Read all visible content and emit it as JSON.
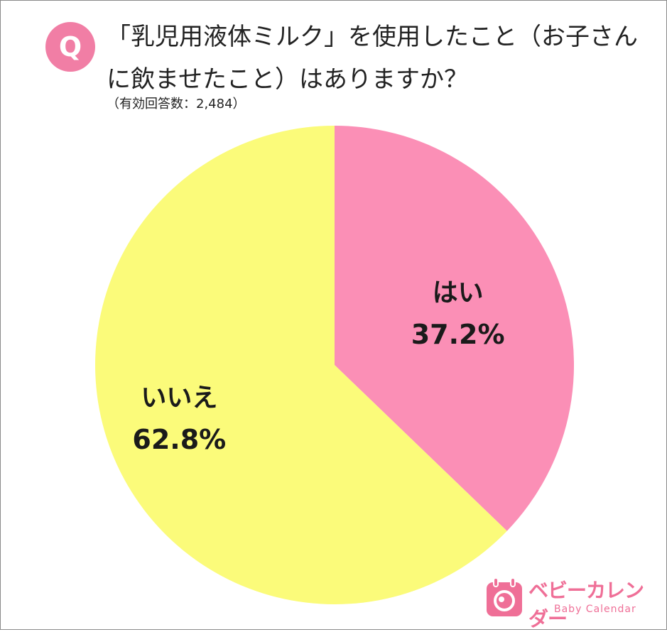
{
  "question": {
    "badge": "Q",
    "text": "「乳児用液体ミルク」を使用したこと（お子さんに飲ませたこと）はありますか？",
    "note": "（有効回答数：2,484）"
  },
  "colors": {
    "badge": "#f17ea5",
    "yes": "#fb8fb6",
    "no": "#fbfb7a",
    "logo": "#ef6f97"
  },
  "chart_data": {
    "type": "pie",
    "title": "「乳児用液体ミルク」を使用したこと（お子さんに飲ませたこと）はありますか？",
    "slices": [
      {
        "label": "はい",
        "value": 37.2,
        "display": "37.2%"
      },
      {
        "label": "いいえ",
        "value": 62.8,
        "display": "62.8%"
      }
    ],
    "legend": "none"
  },
  "logo": {
    "name": "ベビーカレンダー",
    "subtitle": "Baby Calendar",
    "icon": "calendar-baby-icon"
  }
}
